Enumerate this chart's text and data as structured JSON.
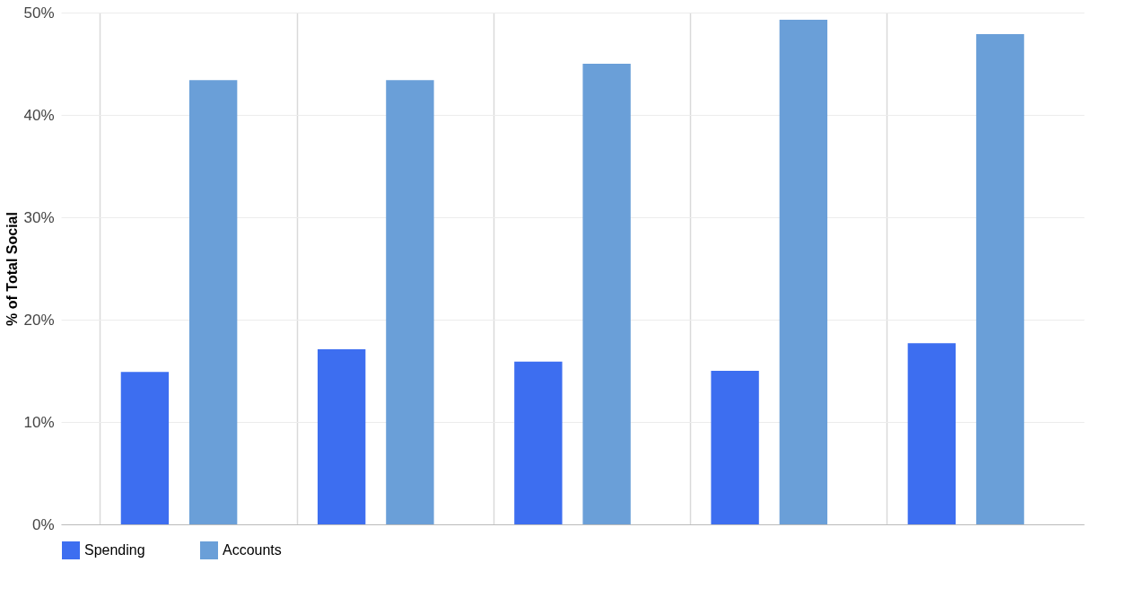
{
  "chart_data": {
    "type": "bar",
    "ylabel": "% of Total Social",
    "categories": [
      null,
      null,
      null,
      null,
      null
    ],
    "series": [
      {
        "name": "Spending",
        "color": "#3d6ef0",
        "values": [
          14.9,
          17.1,
          15.9,
          15.0,
          17.7
        ]
      },
      {
        "name": "Accounts",
        "color": "#6a9fd8",
        "values": [
          43.4,
          43.4,
          45.0,
          49.3,
          47.9
        ]
      }
    ],
    "ylim": [
      0,
      50
    ],
    "yticks": [
      {
        "value": 0,
        "label": "0%"
      },
      {
        "value": 10,
        "label": "10%"
      },
      {
        "value": 20,
        "label": "20%"
      },
      {
        "value": 30,
        "label": "30%"
      },
      {
        "value": 40,
        "label": "40%"
      },
      {
        "value": 50,
        "label": "50%"
      }
    ],
    "grid": true,
    "legend": "bottom",
    "tick_labels": "y"
  }
}
